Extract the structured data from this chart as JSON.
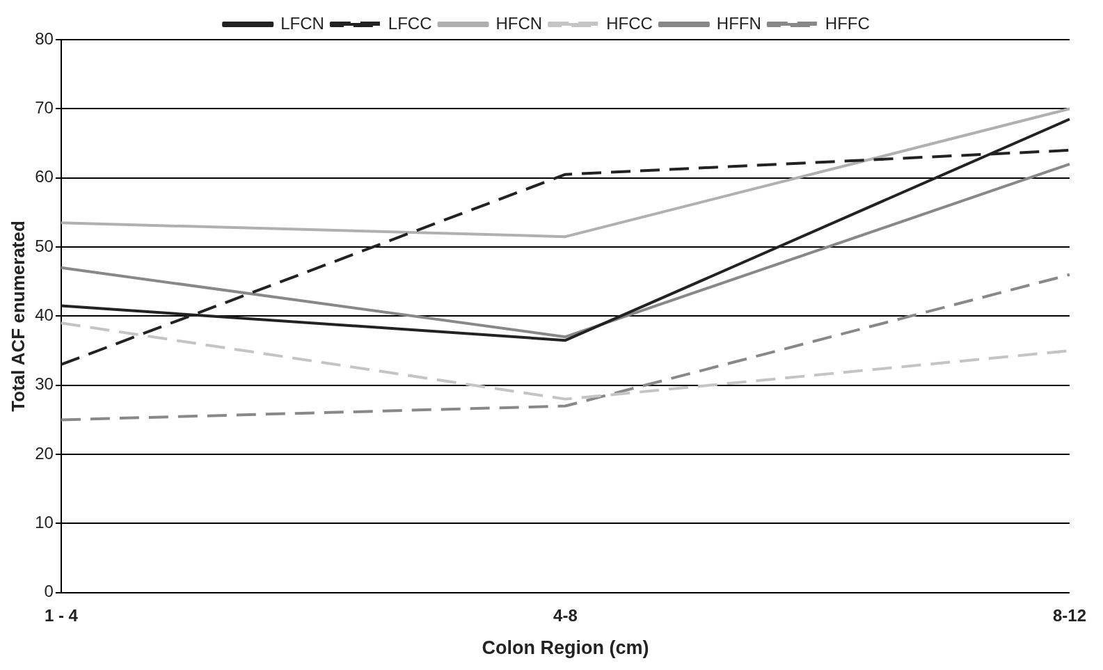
{
  "chart_data": {
    "type": "line",
    "xlabel": "Colon Region (cm)",
    "ylabel": "Total ACF enumerated",
    "categories": [
      "1 - 4",
      "4-8",
      "8-12"
    ],
    "series": [
      {
        "name": "LFCN",
        "color": "#222222",
        "line_style": "solid",
        "values": [
          41.5,
          36.5,
          68.5
        ]
      },
      {
        "name": "LFCC",
        "color": "#222222",
        "line_style": "dashed",
        "values": [
          33,
          60.5,
          64
        ]
      },
      {
        "name": "HFCN",
        "color": "#b0b0b0",
        "line_style": "solid",
        "values": [
          53.5,
          51.5,
          70
        ]
      },
      {
        "name": "HFCC",
        "color": "#c4c4c4",
        "line_style": "dashed",
        "values": [
          39,
          28,
          35
        ]
      },
      {
        "name": "HFFN",
        "color": "#888888",
        "line_style": "solid",
        "values": [
          47,
          37,
          62
        ]
      },
      {
        "name": "HFFC",
        "color": "#888888",
        "line_style": "dashed",
        "values": [
          25,
          27,
          46
        ]
      }
    ],
    "ylim": [
      0,
      80
    ],
    "yticks": [
      0,
      10,
      20,
      30,
      40,
      50,
      60,
      70,
      80
    ],
    "grid": "y",
    "legend": "top",
    "marker": "none"
  }
}
